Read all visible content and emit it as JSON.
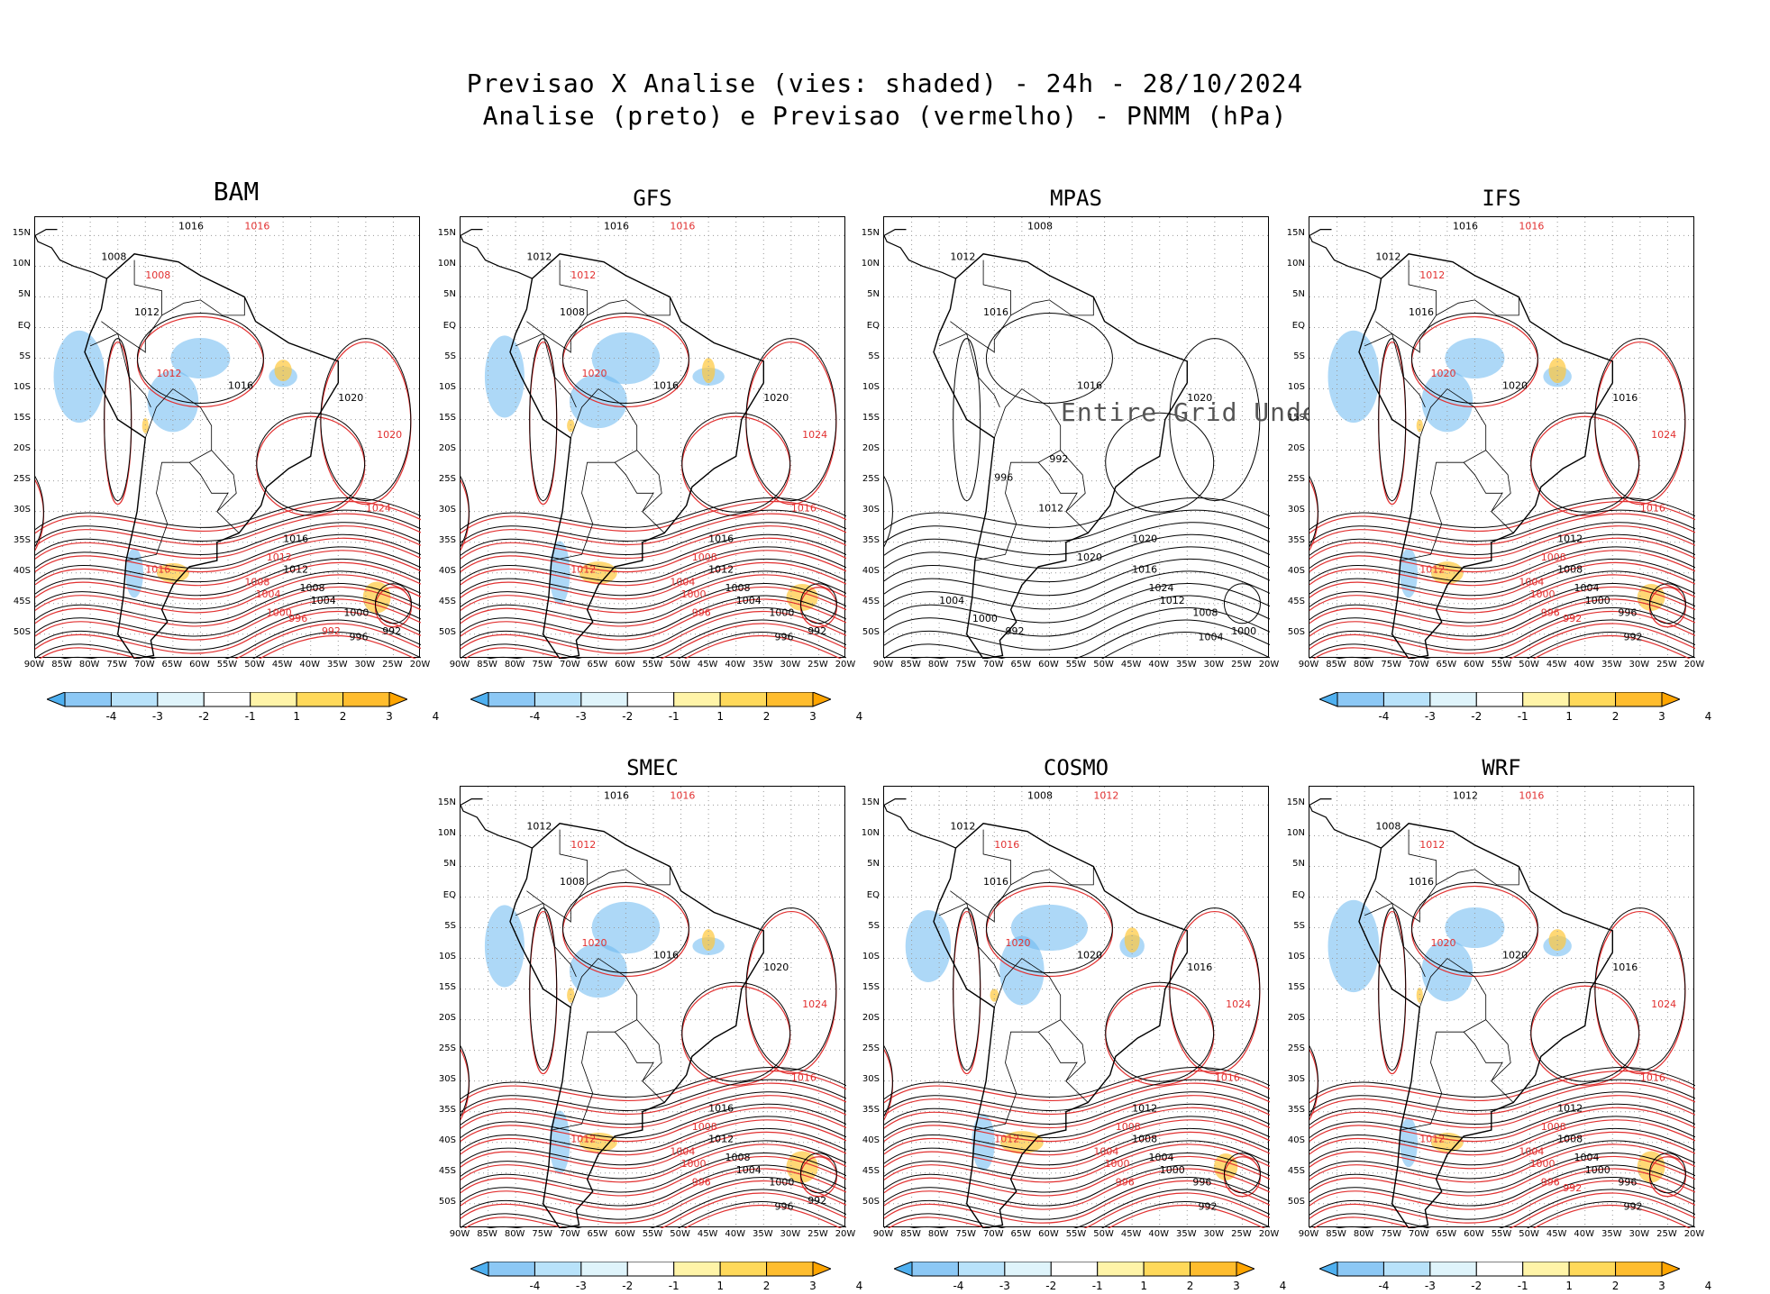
{
  "title": {
    "line1": "Previsao X Analise (vies: shaded) - 24h - 28/10/2024",
    "line2": "Analise (preto) e Previsao (vermelho) - PNMM (hPa)"
  },
  "lat_labels": [
    "15N",
    "10N",
    "5N",
    "EQ",
    "5S",
    "10S",
    "15S",
    "20S",
    "25S",
    "30S",
    "35S",
    "40S",
    "45S",
    "50S"
  ],
  "lon_labels": [
    "90W",
    "85W",
    "80W",
    "75W",
    "70W",
    "65W",
    "60W",
    "55W",
    "50W",
    "45W",
    "40W",
    "35W",
    "30W",
    "25W",
    "20W"
  ],
  "colorbar": {
    "ticks": [
      "-4",
      "-3",
      "-2",
      "-1",
      "1",
      "2",
      "3",
      "4"
    ],
    "colors": [
      "#4fb0f0",
      "#8cc8f5",
      "#b8e2fa",
      "#dff4fb",
      "#ffffff",
      "#fff4a8",
      "#ffd95a",
      "#ffbd2e",
      "#ffa500"
    ]
  },
  "colors": {
    "analysis_contour": "#000000",
    "forecast_contour": "#e23030",
    "negative_bias": "#6ab8f0",
    "positive_bias": "#ffc83a"
  },
  "panels": [
    {
      "name": "BAM",
      "undef": false,
      "labels_black": [
        "1016",
        "1008",
        "1012",
        "1016",
        "1020",
        "1016",
        "1012",
        "1008",
        "1004",
        "1000",
        "996",
        "992"
      ],
      "labels_red": [
        "1016",
        "1008",
        "1012",
        "1020",
        "1024",
        "1016",
        "1012",
        "1008",
        "1004",
        "1000",
        "996",
        "992"
      ]
    },
    {
      "name": "GFS",
      "undef": false,
      "labels_black": [
        "1016",
        "1012",
        "1008",
        "1016",
        "1020",
        "1016",
        "1012",
        "1008",
        "1004",
        "1000",
        "996",
        "992"
      ],
      "labels_red": [
        "1016",
        "1012",
        "1020",
        "1024",
        "1016",
        "1012",
        "1008",
        "1004",
        "1000",
        "996"
      ]
    },
    {
      "name": "MPAS",
      "undef": true,
      "undef_text": "Entire Grid Undef",
      "labels_black": [
        "1008",
        "1012",
        "1016",
        "1016",
        "1020",
        "1020",
        "1016",
        "1024",
        "1012",
        "1008",
        "1004",
        "1000",
        "992",
        "996",
        "1012",
        "1004",
        "1000",
        "992",
        "1020"
      ],
      "labels_red": []
    },
    {
      "name": "IFS",
      "undef": false,
      "labels_black": [
        "1016",
        "1012",
        "1016",
        "1020",
        "1016",
        "1012",
        "1008",
        "1004",
        "1000",
        "996",
        "992"
      ],
      "labels_red": [
        "1016",
        "1012",
        "1020",
        "1024",
        "1016",
        "1012",
        "1008",
        "1004",
        "1000",
        "996",
        "992"
      ]
    },
    {
      "name": "SMEC",
      "undef": false,
      "labels_black": [
        "1016",
        "1012",
        "1008",
        "1016",
        "1020",
        "1016",
        "1012",
        "1008",
        "1004",
        "1000",
        "996",
        "992"
      ],
      "labels_red": [
        "1016",
        "1012",
        "1020",
        "1024",
        "1016",
        "1012",
        "1008",
        "1004",
        "1000",
        "996"
      ]
    },
    {
      "name": "COSMO",
      "undef": false,
      "labels_black": [
        "1008",
        "1012",
        "1016",
        "1020",
        "1016",
        "1012",
        "1008",
        "1004",
        "1000",
        "996",
        "992"
      ],
      "labels_red": [
        "1012",
        "1016",
        "1020",
        "1024",
        "1016",
        "1012",
        "1008",
        "1004",
        "1000",
        "996"
      ]
    },
    {
      "name": "WRF",
      "undef": false,
      "labels_black": [
        "1012",
        "1008",
        "1016",
        "1020",
        "1016",
        "1012",
        "1008",
        "1004",
        "1000",
        "996",
        "992"
      ],
      "labels_red": [
        "1016",
        "1012",
        "1020",
        "1024",
        "1016",
        "1012",
        "1008",
        "1004",
        "1000",
        "996",
        "992"
      ]
    }
  ]
}
